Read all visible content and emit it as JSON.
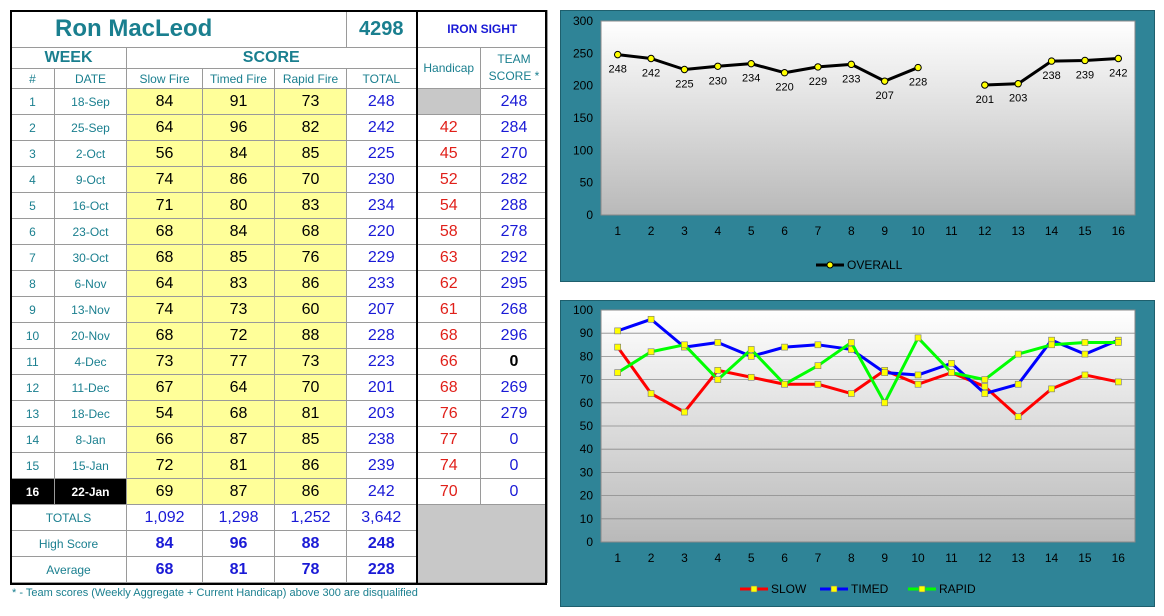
{
  "header": {
    "name": "Ron MacLeod",
    "id": "4298",
    "team": "IRON SIGHT"
  },
  "table": {
    "group_week": "WEEK",
    "group_score": "SCORE",
    "col_num": "#",
    "col_date": "DATE",
    "col_slow": "Slow Fire",
    "col_timed": "Timed Fire",
    "col_rapid": "Rapid Fire",
    "col_total": "TOTAL",
    "col_handicap": "Handicap",
    "col_team": "TEAM SCORE *",
    "rows": [
      {
        "num": "1",
        "date": "18-Sep",
        "slow": "84",
        "timed": "91",
        "rapid": "73",
        "total": "248",
        "handicap": "",
        "team": "248"
      },
      {
        "num": "2",
        "date": "25-Sep",
        "slow": "64",
        "timed": "96",
        "rapid": "82",
        "total": "242",
        "handicap": "42",
        "team": "284"
      },
      {
        "num": "3",
        "date": "2-Oct",
        "slow": "56",
        "timed": "84",
        "rapid": "85",
        "total": "225",
        "handicap": "45",
        "team": "270"
      },
      {
        "num": "4",
        "date": "9-Oct",
        "slow": "74",
        "timed": "86",
        "rapid": "70",
        "total": "230",
        "handicap": "52",
        "team": "282"
      },
      {
        "num": "5",
        "date": "16-Oct",
        "slow": "71",
        "timed": "80",
        "rapid": "83",
        "total": "234",
        "handicap": "54",
        "team": "288"
      },
      {
        "num": "6",
        "date": "23-Oct",
        "slow": "68",
        "timed": "84",
        "rapid": "68",
        "total": "220",
        "handicap": "58",
        "team": "278"
      },
      {
        "num": "7",
        "date": "30-Oct",
        "slow": "68",
        "timed": "85",
        "rapid": "76",
        "total": "229",
        "handicap": "63",
        "team": "292"
      },
      {
        "num": "8",
        "date": "6-Nov",
        "slow": "64",
        "timed": "83",
        "rapid": "86",
        "total": "233",
        "handicap": "62",
        "team": "295"
      },
      {
        "num": "9",
        "date": "13-Nov",
        "slow": "74",
        "timed": "73",
        "rapid": "60",
        "total": "207",
        "handicap": "61",
        "team": "268"
      },
      {
        "num": "10",
        "date": "20-Nov",
        "slow": "68",
        "timed": "72",
        "rapid": "88",
        "total": "228",
        "handicap": "68",
        "team": "296"
      },
      {
        "num": "11",
        "date": "4-Dec",
        "slow": "73",
        "timed": "77",
        "rapid": "73",
        "total": "223",
        "handicap": "66",
        "team": "0"
      },
      {
        "num": "12",
        "date": "11-Dec",
        "slow": "67",
        "timed": "64",
        "rapid": "70",
        "total": "201",
        "handicap": "68",
        "team": "269"
      },
      {
        "num": "13",
        "date": "18-Dec",
        "slow": "54",
        "timed": "68",
        "rapid": "81",
        "total": "203",
        "handicap": "76",
        "team": "279"
      },
      {
        "num": "14",
        "date": "8-Jan",
        "slow": "66",
        "timed": "87",
        "rapid": "85",
        "total": "238",
        "handicap": "77",
        "team": "0"
      },
      {
        "num": "15",
        "date": "15-Jan",
        "slow": "72",
        "timed": "81",
        "rapid": "86",
        "total": "239",
        "handicap": "74",
        "team": "0"
      },
      {
        "num": "16",
        "date": "22-Jan",
        "slow": "69",
        "timed": "87",
        "rapid": "86",
        "total": "242",
        "handicap": "70",
        "team": "0"
      }
    ],
    "totals": {
      "label": "TOTALS",
      "slow": "1,092",
      "timed": "1,298",
      "rapid": "1,252",
      "total": "3,642"
    },
    "high": {
      "label": "High Score",
      "slow": "84",
      "timed": "96",
      "rapid": "88",
      "total": "248"
    },
    "average": {
      "label": "Average",
      "slow": "68",
      "timed": "81",
      "rapid": "78",
      "total": "228"
    }
  },
  "footnote": "* - Team scores (Weekly Aggregate + Current Handicap) above 300 are disqualified",
  "colors": {
    "slow": "#ff0000",
    "timed": "#0000ff",
    "rapid": "#00ff00",
    "overall": "#000000",
    "marker": "#ffff00",
    "chart_bg": "#2f8497"
  },
  "chart_data": [
    {
      "type": "line",
      "categories": [
        1,
        2,
        3,
        4,
        5,
        6,
        7,
        8,
        9,
        10,
        11,
        12,
        13,
        14,
        15,
        16
      ],
      "series": [
        {
          "name": "OVERALL",
          "values": [
            248,
            242,
            225,
            230,
            234,
            220,
            229,
            233,
            207,
            228,
            null,
            201,
            203,
            238,
            239,
            242
          ]
        }
      ],
      "ylim": [
        0,
        300
      ],
      "yticks": [
        0,
        50,
        100,
        150,
        200,
        250,
        300
      ],
      "data_labels": true,
      "legend": "bottom",
      "grid": false
    },
    {
      "type": "line",
      "categories": [
        1,
        2,
        3,
        4,
        5,
        6,
        7,
        8,
        9,
        10,
        11,
        12,
        13,
        14,
        15,
        16
      ],
      "series": [
        {
          "name": "SLOW",
          "values": [
            84,
            64,
            56,
            74,
            71,
            68,
            68,
            64,
            74,
            68,
            73,
            67,
            54,
            66,
            72,
            69
          ]
        },
        {
          "name": "TIMED",
          "values": [
            91,
            96,
            84,
            86,
            80,
            84,
            85,
            83,
            73,
            72,
            77,
            64,
            68,
            87,
            81,
            87
          ]
        },
        {
          "name": "RAPID",
          "values": [
            73,
            82,
            85,
            70,
            83,
            68,
            76,
            86,
            60,
            88,
            73,
            70,
            81,
            85,
            86,
            86
          ]
        }
      ],
      "ylim": [
        0,
        100
      ],
      "yticks": [
        0,
        10,
        20,
        30,
        40,
        50,
        60,
        70,
        80,
        90,
        100
      ],
      "data_labels": false,
      "legend": "bottom",
      "grid": true
    }
  ]
}
